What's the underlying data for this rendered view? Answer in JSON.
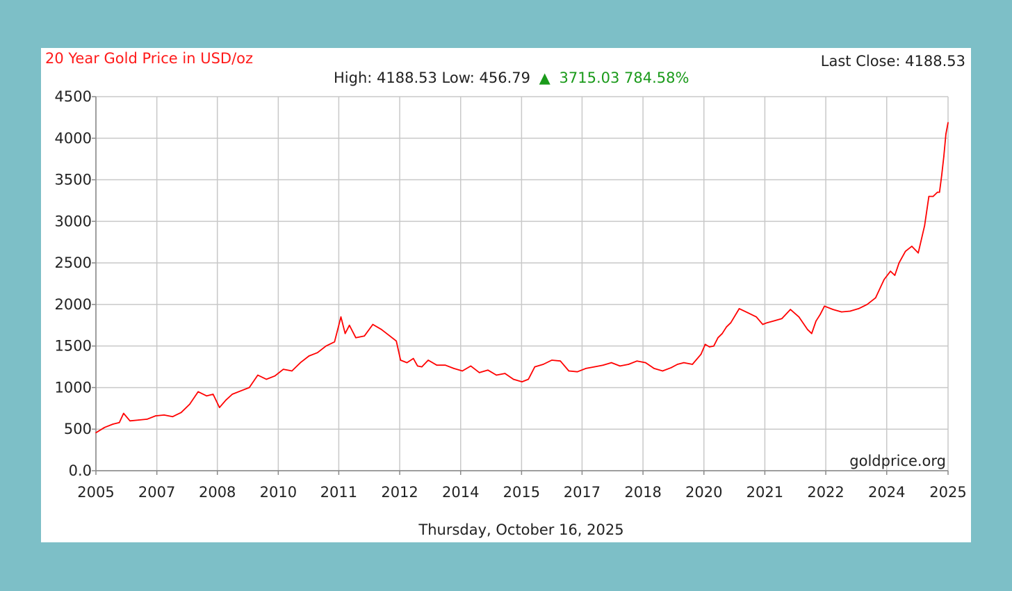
{
  "header": {
    "title": "20 Year Gold Price in USD/oz",
    "last_close_label": "Last Close: 4188.53",
    "high_low_label": "High: 4188.53 Low: 456.79",
    "change_arrow": "▲",
    "change_label": "3715.03 784.58%"
  },
  "footer": {
    "date": "Thursday, October 16, 2025",
    "watermark": "goldprice.org"
  },
  "colors": {
    "background": "#7dbfc7",
    "line": "#ff0000",
    "title": "#ff1a1a",
    "change": "#1a9a1a"
  },
  "chart_data": {
    "type": "line",
    "title": "20 Year Gold Price in USD/oz",
    "ylim": [
      0,
      4500
    ],
    "yticks": [
      {
        "value": 0,
        "label": "0.0"
      },
      {
        "value": 500,
        "label": "500"
      },
      {
        "value": 1000,
        "label": "1000"
      },
      {
        "value": 1500,
        "label": "1500"
      },
      {
        "value": 2000,
        "label": "2000"
      },
      {
        "value": 2500,
        "label": "2500"
      },
      {
        "value": 3000,
        "label": "3000"
      },
      {
        "value": 3500,
        "label": "3500"
      },
      {
        "value": 4000,
        "label": "4000"
      },
      {
        "value": 4500,
        "label": "4500"
      }
    ],
    "xlim": [
      2005.8,
      2025.8
    ],
    "xticks": [
      {
        "value": 2005.8,
        "label": "2005"
      },
      {
        "value": 2007.23,
        "label": "2007"
      },
      {
        "value": 2008.65,
        "label": "2008"
      },
      {
        "value": 2010.08,
        "label": "2010"
      },
      {
        "value": 2011.5,
        "label": "2011"
      },
      {
        "value": 2012.93,
        "label": "2012"
      },
      {
        "value": 2014.36,
        "label": "2014"
      },
      {
        "value": 2015.79,
        "label": "2015"
      },
      {
        "value": 2017.21,
        "label": "2017"
      },
      {
        "value": 2018.64,
        "label": "2018"
      },
      {
        "value": 2020.07,
        "label": "2020"
      },
      {
        "value": 2021.5,
        "label": "2021"
      },
      {
        "value": 2022.93,
        "label": "2022"
      },
      {
        "value": 2024.36,
        "label": "2024"
      },
      {
        "value": 2025.8,
        "label": "2025"
      }
    ],
    "grid": true,
    "series": [
      {
        "color": "#ff0000",
        "x": [
          2005.8,
          2006.0,
          2006.2,
          2006.35,
          2006.45,
          2006.6,
          2006.8,
          2007.0,
          2007.2,
          2007.4,
          2007.6,
          2007.8,
          2008.0,
          2008.2,
          2008.4,
          2008.55,
          2008.7,
          2008.85,
          2009.0,
          2009.2,
          2009.4,
          2009.6,
          2009.8,
          2010.0,
          2010.2,
          2010.4,
          2010.6,
          2010.8,
          2011.0,
          2011.2,
          2011.4,
          2011.55,
          2011.65,
          2011.75,
          2011.9,
          2012.1,
          2012.3,
          2012.5,
          2012.7,
          2012.85,
          2012.95,
          2013.1,
          2013.25,
          2013.35,
          2013.45,
          2013.6,
          2013.8,
          2014.0,
          2014.2,
          2014.4,
          2014.6,
          2014.8,
          2015.0,
          2015.2,
          2015.4,
          2015.6,
          2015.8,
          2015.95,
          2016.1,
          2016.3,
          2016.5,
          2016.7,
          2016.9,
          2017.1,
          2017.3,
          2017.5,
          2017.7,
          2017.9,
          2018.1,
          2018.3,
          2018.5,
          2018.7,
          2018.9,
          2019.1,
          2019.3,
          2019.45,
          2019.6,
          2019.8,
          2020.0,
          2020.1,
          2020.2,
          2020.3,
          2020.4,
          2020.5,
          2020.6,
          2020.7,
          2020.9,
          2021.1,
          2021.3,
          2021.45,
          2021.55,
          2021.7,
          2021.9,
          2022.1,
          2022.3,
          2022.5,
          2022.6,
          2022.7,
          2022.8,
          2022.9,
          2023.1,
          2023.3,
          2023.5,
          2023.7,
          2023.9,
          2024.1,
          2024.3,
          2024.45,
          2024.55,
          2024.65,
          2024.8,
          2024.95,
          2025.1,
          2025.25,
          2025.35,
          2025.45,
          2025.55,
          2025.6,
          2025.65,
          2025.7,
          2025.75,
          2025.8
        ],
        "y": [
          457,
          520,
          560,
          580,
          690,
          600,
          610,
          620,
          660,
          670,
          650,
          700,
          800,
          950,
          900,
          920,
          760,
          850,
          920,
          960,
          1000,
          1150,
          1100,
          1140,
          1220,
          1200,
          1300,
          1380,
          1420,
          1500,
          1550,
          1850,
          1650,
          1750,
          1600,
          1620,
          1760,
          1700,
          1620,
          1560,
          1330,
          1300,
          1350,
          1260,
          1250,
          1330,
          1270,
          1270,
          1230,
          1200,
          1260,
          1180,
          1210,
          1150,
          1170,
          1100,
          1070,
          1100,
          1250,
          1280,
          1330,
          1320,
          1200,
          1190,
          1230,
          1250,
          1270,
          1300,
          1260,
          1280,
          1320,
          1300,
          1230,
          1200,
          1240,
          1280,
          1300,
          1280,
          1400,
          1520,
          1490,
          1500,
          1600,
          1650,
          1730,
          1780,
          1950,
          1900,
          1850,
          1760,
          1780,
          1800,
          1830,
          1940,
          1850,
          1700,
          1650,
          1800,
          1880,
          1980,
          1940,
          1910,
          1920,
          1950,
          2000,
          2080,
          2300,
          2400,
          2350,
          2500,
          2640,
          2700,
          2620,
          2950,
          3300,
          3300,
          3350,
          3350,
          3550,
          3780,
          4050,
          4188
        ]
      }
    ]
  }
}
